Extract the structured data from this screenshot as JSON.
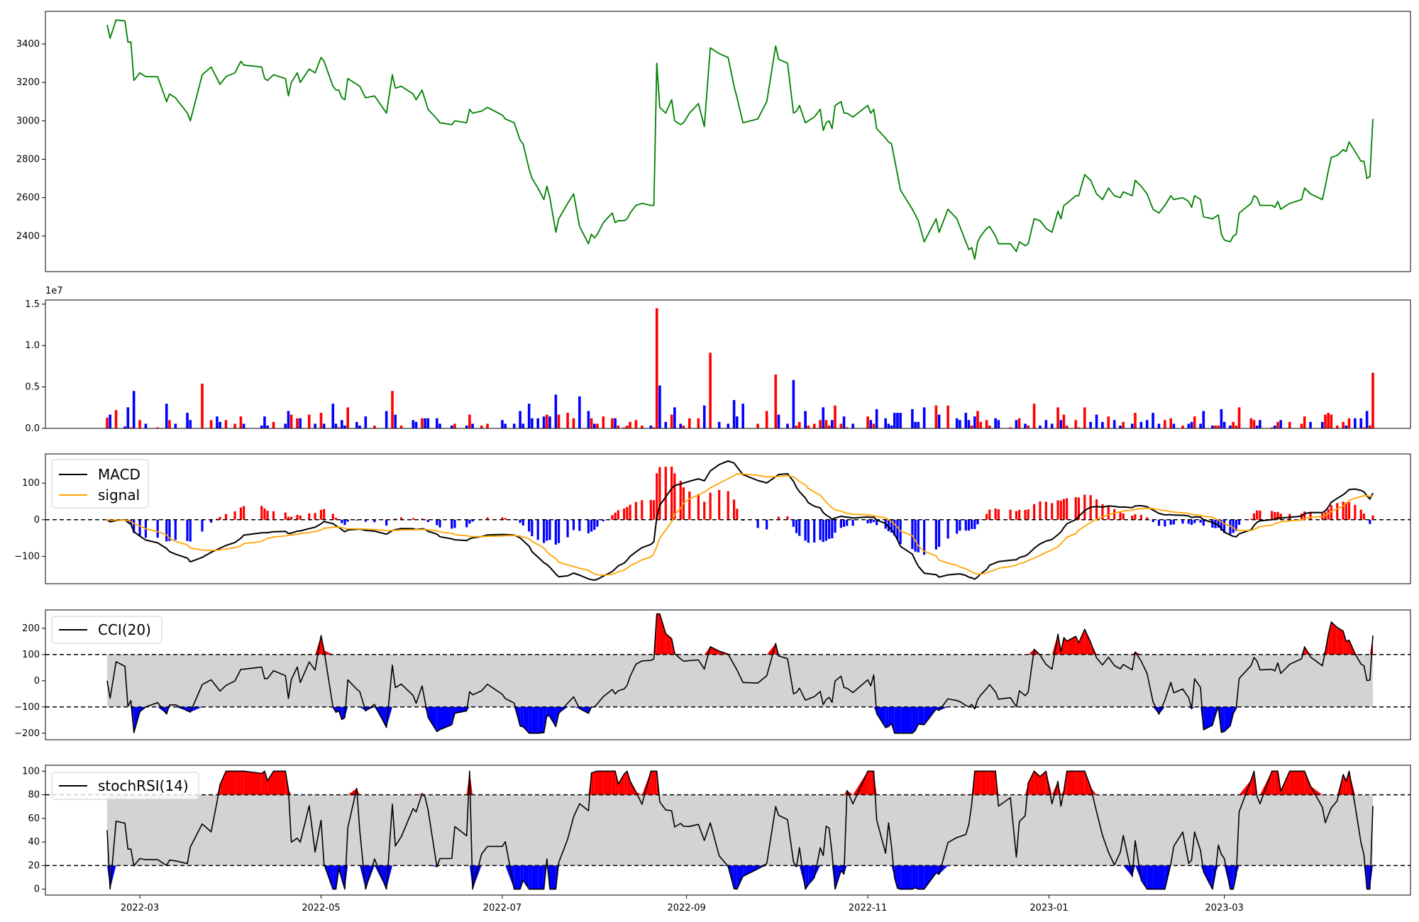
{
  "chart_data": [
    {
      "panel": "price",
      "type": "line",
      "color": "#008000",
      "ylim": [
        2215,
        3570
      ],
      "yticks": [
        2400,
        2600,
        2800,
        3000,
        3200,
        3400
      ],
      "points": [
        [
          "2022-02-18",
          3500
        ],
        [
          "2022-02-19",
          3430
        ],
        [
          "2022-02-21",
          3525
        ],
        [
          "2022-02-24",
          3520
        ],
        [
          "2022-02-25",
          3410
        ],
        [
          "2022-02-26",
          3410
        ],
        [
          "2022-02-27",
          3210
        ],
        [
          "2022-03-01",
          3250
        ],
        [
          "2022-03-03",
          3230
        ],
        [
          "2022-03-07",
          3230
        ],
        [
          "2022-03-10",
          3100
        ],
        [
          "2022-03-11",
          3140
        ],
        [
          "2022-03-13",
          3120
        ],
        [
          "2022-03-17",
          3040
        ],
        [
          "2022-03-18",
          3000
        ],
        [
          "2022-03-22",
          3240
        ],
        [
          "2022-03-25",
          3280
        ],
        [
          "2022-03-27",
          3220
        ],
        [
          "2022-03-28",
          3190
        ],
        [
          "2022-03-30",
          3230
        ],
        [
          "2022-04-02",
          3250
        ],
        [
          "2022-04-04",
          3310
        ],
        [
          "2022-04-05",
          3290
        ],
        [
          "2022-04-11",
          3280
        ],
        [
          "2022-04-12",
          3220
        ],
        [
          "2022-04-13",
          3210
        ],
        [
          "2022-04-15",
          3240
        ],
        [
          "2022-04-19",
          3220
        ],
        [
          "2022-04-20",
          3130
        ],
        [
          "2022-04-21",
          3200
        ],
        [
          "2022-04-23",
          3250
        ],
        [
          "2022-04-24",
          3200
        ],
        [
          "2022-04-27",
          3270
        ],
        [
          "2022-04-29",
          3250
        ],
        [
          "2022-05-01",
          3330
        ],
        [
          "2022-05-02",
          3310
        ],
        [
          "2022-05-05",
          3180
        ],
        [
          "2022-05-06",
          3160
        ],
        [
          "2022-05-07",
          3160
        ],
        [
          "2022-05-08",
          3120
        ],
        [
          "2022-05-09",
          3110
        ],
        [
          "2022-05-10",
          3220
        ],
        [
          "2022-05-13",
          3190
        ],
        [
          "2022-05-14",
          3180
        ],
        [
          "2022-05-16",
          3120
        ],
        [
          "2022-05-19",
          3130
        ],
        [
          "2022-05-23",
          3040
        ],
        [
          "2022-05-25",
          3240
        ],
        [
          "2022-05-26",
          3170
        ],
        [
          "2022-05-28",
          3180
        ],
        [
          "2022-06-01",
          3140
        ],
        [
          "2022-06-02",
          3110
        ],
        [
          "2022-06-04",
          3160
        ],
        [
          "2022-06-05",
          3110
        ],
        [
          "2022-06-06",
          3060
        ],
        [
          "2022-06-09",
          3010
        ],
        [
          "2022-06-10",
          2990
        ],
        [
          "2022-06-14",
          2980
        ],
        [
          "2022-06-15",
          3000
        ],
        [
          "2022-06-19",
          2990
        ],
        [
          "2022-06-20",
          3060
        ],
        [
          "2022-06-21",
          3040
        ],
        [
          "2022-06-24",
          3050
        ],
        [
          "2022-06-26",
          3070
        ],
        [
          "2022-07-01",
          3030
        ],
        [
          "2022-07-02",
          3010
        ],
        [
          "2022-07-05",
          2990
        ],
        [
          "2022-07-07",
          2900
        ],
        [
          "2022-07-08",
          2880
        ],
        [
          "2022-07-10",
          2750
        ],
        [
          "2022-07-11",
          2700
        ],
        [
          "2022-07-13",
          2650
        ],
        [
          "2022-07-15",
          2590
        ],
        [
          "2022-07-16",
          2660
        ],
        [
          "2022-07-17",
          2600
        ],
        [
          "2022-07-19",
          2420
        ],
        [
          "2022-07-20",
          2490
        ],
        [
          "2022-07-23",
          2570
        ],
        [
          "2022-07-25",
          2620
        ],
        [
          "2022-07-27",
          2450
        ],
        [
          "2022-07-30",
          2360
        ],
        [
          "2022-07-31",
          2410
        ],
        [
          "2022-08-01",
          2390
        ],
        [
          "2022-08-02",
          2410
        ],
        [
          "2022-08-04",
          2470
        ],
        [
          "2022-08-07",
          2520
        ],
        [
          "2022-08-08",
          2470
        ],
        [
          "2022-08-09",
          2480
        ],
        [
          "2022-08-11",
          2480
        ],
        [
          "2022-08-12",
          2490
        ],
        [
          "2022-08-13",
          2520
        ],
        [
          "2022-08-15",
          2560
        ],
        [
          "2022-08-17",
          2570
        ],
        [
          "2022-08-20",
          2560
        ],
        [
          "2022-08-21",
          2560
        ],
        [
          "2022-08-22",
          3300
        ],
        [
          "2022-08-23",
          3070
        ],
        [
          "2022-08-25",
          3040
        ],
        [
          "2022-08-27",
          3110
        ],
        [
          "2022-08-28",
          3000
        ],
        [
          "2022-08-30",
          2980
        ],
        [
          "2022-08-31",
          2990
        ],
        [
          "2022-09-02",
          3040
        ],
        [
          "2022-09-05",
          3090
        ],
        [
          "2022-09-07",
          2970
        ],
        [
          "2022-09-09",
          3380
        ],
        [
          "2022-09-12",
          3350
        ],
        [
          "2022-09-15",
          3330
        ],
        [
          "2022-09-17",
          3180
        ],
        [
          "2022-09-18",
          3120
        ],
        [
          "2022-09-20",
          2990
        ],
        [
          "2022-09-25",
          3010
        ],
        [
          "2022-09-28",
          3100
        ],
        [
          "2022-10-01",
          3390
        ],
        [
          "2022-10-02",
          3320
        ],
        [
          "2022-10-05",
          3300
        ],
        [
          "2022-10-07",
          3040
        ],
        [
          "2022-10-08",
          3050
        ],
        [
          "2022-10-09",
          3080
        ],
        [
          "2022-10-11",
          2990
        ],
        [
          "2022-10-12",
          3000
        ],
        [
          "2022-10-14",
          3020
        ],
        [
          "2022-10-16",
          3060
        ],
        [
          "2022-10-17",
          2950
        ],
        [
          "2022-10-18",
          2990
        ],
        [
          "2022-10-19",
          3000
        ],
        [
          "2022-10-20",
          2960
        ],
        [
          "2022-10-21",
          3080
        ],
        [
          "2022-10-23",
          3100
        ],
        [
          "2022-10-24",
          3040
        ],
        [
          "2022-10-25",
          3040
        ],
        [
          "2022-10-27",
          3020
        ],
        [
          "2022-11-01",
          3080
        ],
        [
          "2022-11-02",
          3040
        ],
        [
          "2022-11-03",
          3060
        ],
        [
          "2022-11-04",
          2960
        ],
        [
          "2022-11-07",
          2910
        ],
        [
          "2022-11-08",
          2890
        ],
        [
          "2022-11-09",
          2880
        ],
        [
          "2022-11-10",
          2800
        ],
        [
          "2022-11-11",
          2720
        ],
        [
          "2022-11-12",
          2640
        ],
        [
          "2022-11-16",
          2540
        ],
        [
          "2022-11-17",
          2510
        ],
        [
          "2022-11-18",
          2480
        ],
        [
          "2022-11-20",
          2370
        ],
        [
          "2022-11-24",
          2490
        ],
        [
          "2022-11-25",
          2420
        ],
        [
          "2022-11-28",
          2540
        ],
        [
          "2022-12-01",
          2490
        ],
        [
          "2022-12-02",
          2450
        ],
        [
          "2022-12-04",
          2370
        ],
        [
          "2022-12-05",
          2330
        ],
        [
          "2022-12-06",
          2340
        ],
        [
          "2022-12-07",
          2280
        ],
        [
          "2022-12-08",
          2370
        ],
        [
          "2022-12-09",
          2400
        ],
        [
          "2022-12-11",
          2440
        ],
        [
          "2022-12-12",
          2450
        ],
        [
          "2022-12-14",
          2400
        ],
        [
          "2022-12-15",
          2360
        ],
        [
          "2022-12-19",
          2360
        ],
        [
          "2022-12-21",
          2320
        ],
        [
          "2022-12-22",
          2370
        ],
        [
          "2022-12-24",
          2350
        ],
        [
          "2022-12-25",
          2360
        ],
        [
          "2022-12-27",
          2490
        ],
        [
          "2022-12-29",
          2480
        ],
        [
          "2022-12-31",
          2440
        ],
        [
          "2023-01-02",
          2420
        ],
        [
          "2023-01-04",
          2530
        ],
        [
          "2023-01-05",
          2490
        ],
        [
          "2023-01-06",
          2560
        ],
        [
          "2023-01-07",
          2570
        ],
        [
          "2023-01-10",
          2610
        ],
        [
          "2023-01-11",
          2610
        ],
        [
          "2023-01-13",
          2720
        ],
        [
          "2023-01-15",
          2690
        ],
        [
          "2023-01-17",
          2620
        ],
        [
          "2023-01-19",
          2590
        ],
        [
          "2023-01-21",
          2650
        ],
        [
          "2023-01-23",
          2610
        ],
        [
          "2023-01-25",
          2600
        ],
        [
          "2023-01-26",
          2630
        ],
        [
          "2023-01-29",
          2610
        ],
        [
          "2023-01-30",
          2690
        ],
        [
          "2023-02-01",
          2660
        ],
        [
          "2023-02-03",
          2620
        ],
        [
          "2023-02-05",
          2540
        ],
        [
          "2023-02-07",
          2520
        ],
        [
          "2023-02-09",
          2560
        ],
        [
          "2023-02-11",
          2610
        ],
        [
          "2023-02-12",
          2590
        ],
        [
          "2023-02-15",
          2600
        ],
        [
          "2023-02-17",
          2580
        ],
        [
          "2023-02-18",
          2550
        ],
        [
          "2023-02-19",
          2610
        ],
        [
          "2023-02-21",
          2590
        ],
        [
          "2023-02-22",
          2500
        ],
        [
          "2023-02-25",
          2490
        ],
        [
          "2023-02-26",
          2500
        ],
        [
          "2023-02-27",
          2510
        ],
        [
          "2023-02-28",
          2410
        ],
        [
          "2023-03-01",
          2380
        ],
        [
          "2023-03-03",
          2370
        ],
        [
          "2023-03-04",
          2400
        ],
        [
          "2023-03-05",
          2410
        ],
        [
          "2023-03-06",
          2520
        ],
        [
          "2023-03-10",
          2570
        ],
        [
          "2023-03-11",
          2610
        ],
        [
          "2023-03-12",
          2600
        ],
        [
          "2023-03-13",
          2560
        ],
        [
          "2023-03-17",
          2560
        ],
        [
          "2023-03-18",
          2550
        ],
        [
          "2023-03-19",
          2580
        ],
        [
          "2023-03-20",
          2540
        ],
        [
          "2023-03-23",
          2570
        ],
        [
          "2023-03-27",
          2590
        ],
        [
          "2023-03-28",
          2650
        ],
        [
          "2023-03-30",
          2620
        ],
        [
          "2023-04-03",
          2590
        ],
        [
          "2023-04-04",
          2660
        ],
        [
          "2023-04-05",
          2740
        ],
        [
          "2023-04-06",
          2810
        ],
        [
          "2023-04-08",
          2820
        ],
        [
          "2023-04-10",
          2850
        ],
        [
          "2023-04-11",
          2840
        ],
        [
          "2023-04-12",
          2890
        ],
        [
          "2023-04-14",
          2840
        ],
        [
          "2023-04-16",
          2790
        ],
        [
          "2023-04-17",
          2790
        ],
        [
          "2023-04-18",
          2700
        ],
        [
          "2023-04-19",
          2710
        ],
        [
          "2023-04-20",
          3010
        ]
      ]
    },
    {
      "panel": "volume",
      "type": "bar",
      "ylim": [
        0,
        15500000
      ],
      "yticks": [
        0,
        5000000,
        10000000,
        15000000
      ],
      "ytick_labels": [
        "0.0",
        "0.5",
        "1.0",
        "1.5"
      ],
      "offset_text": "1e7",
      "colors": {
        "up": "#ff0000",
        "down": "#0000ff",
        "flat": "#000000"
      }
    },
    {
      "panel": "macd",
      "type": "line",
      "ylim": [
        -175,
        180
      ],
      "yticks": [
        -100,
        0,
        100
      ],
      "ytick_labels": [
        "−100",
        "0",
        "100"
      ],
      "series": [
        {
          "name": "MACD",
          "color": "#000000"
        },
        {
          "name": "signal",
          "color": "#ffa500"
        }
      ],
      "hist_colors": {
        "up": "#ff0000",
        "down": "#0000ff"
      },
      "legend_location": "upper-left"
    },
    {
      "panel": "cci",
      "type": "area",
      "ylim": [
        -225,
        270
      ],
      "yticks": [
        -200,
        -100,
        0,
        100,
        200
      ],
      "ytick_labels": [
        "−200",
        "−100",
        "0",
        "100",
        "200"
      ],
      "thresholds": [
        100,
        -100
      ],
      "series": [
        {
          "name": "CCI(20)",
          "color": "#000000"
        }
      ],
      "fill_colors": {
        "over": "#ff0000",
        "under": "#0000ff",
        "band": "#d3d3d3"
      },
      "legend_location": "upper-left"
    },
    {
      "panel": "stochrsi",
      "type": "area",
      "ylim": [
        -5,
        105
      ],
      "yticks": [
        0,
        20,
        40,
        60,
        80,
        100
      ],
      "thresholds": [
        80,
        20
      ],
      "series": [
        {
          "name": "stochRSI(14)",
          "color": "#000000"
        }
      ],
      "fill_colors": {
        "over": "#ff0000",
        "under": "#0000ff",
        "band": "#d3d3d3"
      },
      "legend_location": "upper-left",
      "xticks": [
        "2022-03",
        "2022-05",
        "2022-07",
        "2022-09",
        "2022-11",
        "2023-01",
        "2023-03"
      ]
    }
  ]
}
